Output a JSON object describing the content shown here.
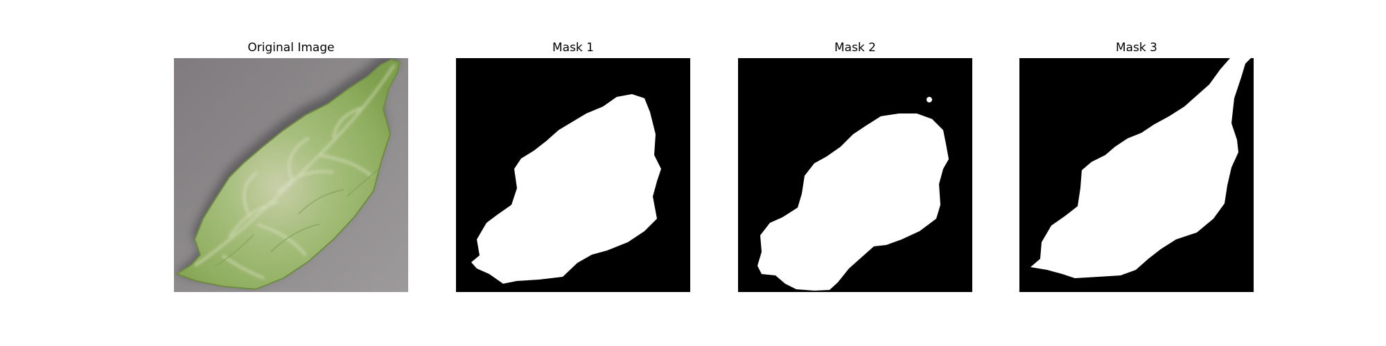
{
  "figure": {
    "panels": [
      {
        "title": "Original Image",
        "kind": "photo"
      },
      {
        "title": "Mask 1",
        "kind": "mask"
      },
      {
        "title": "Mask 2",
        "kind": "mask"
      },
      {
        "title": "Mask 3",
        "kind": "mask"
      }
    ]
  },
  "colors": {
    "background": "#ffffff",
    "mask_background": "#000000",
    "mask_foreground": "#ffffff",
    "photo_background": "#8f8c8e",
    "leaf_green": "#8fb064"
  }
}
